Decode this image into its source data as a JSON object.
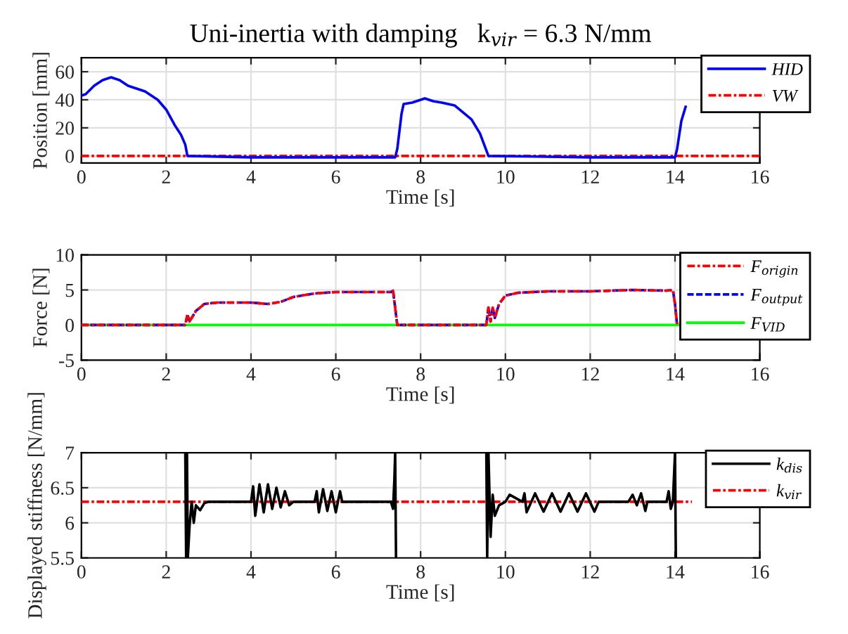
{
  "chart_data": [
    {
      "type": "line",
      "title": "Uni-inertia with damping   k$_{vir}$ = 6.3 N/mm",
      "xlabel": "Time [s]",
      "ylabel": "Position [mm]",
      "xlim": [
        0,
        16
      ],
      "xticks": [
        0,
        2,
        4,
        6,
        8,
        10,
        12,
        14,
        16
      ],
      "ylim": [
        -5,
        70
      ],
      "yticks": [
        0,
        20,
        40,
        60
      ],
      "grid": true,
      "legend": "top right",
      "series": [
        {
          "name": "HID",
          "color": "#0000ff",
          "line_style": "solid",
          "x": [
            0,
            0.1,
            0.3,
            0.5,
            0.7,
            0.9,
            1.1,
            1.5,
            1.8,
            2.0,
            2.2,
            2.35,
            2.45,
            2.5,
            4,
            6,
            7.4,
            7.45,
            7.55,
            7.6,
            7.8,
            8.0,
            8.1,
            8.3,
            8.5,
            8.8,
            9.2,
            9.4,
            9.6,
            12,
            14.0,
            14.05,
            14.15,
            14.25
          ],
          "values": [
            43,
            44,
            50,
            54,
            56,
            54,
            50,
            46,
            40,
            33,
            22,
            15,
            8,
            0,
            -1,
            -1,
            -1,
            5,
            30,
            37,
            38,
            40,
            41,
            39,
            38,
            36,
            26,
            16,
            0,
            -1,
            -1,
            5,
            25,
            35
          ]
        },
        {
          "name": "VW",
          "color": "#ff0000",
          "line_style": "dashdot",
          "x": [
            0,
            16
          ],
          "values": [
            0,
            0
          ]
        }
      ]
    },
    {
      "type": "line",
      "xlabel": "Time [s]",
      "ylabel": "Force [N]",
      "xlim": [
        0,
        16
      ],
      "xticks": [
        0,
        2,
        4,
        6,
        8,
        10,
        12,
        14,
        16
      ],
      "ylim": [
        -5,
        10
      ],
      "yticks": [
        -5,
        0,
        5,
        10
      ],
      "grid": true,
      "legend": "top right",
      "series": [
        {
          "name": "F$_{origin}$",
          "color": "#ff0000",
          "line_style": "dashdot",
          "x": [
            0,
            2.45,
            2.5,
            2.55,
            2.7,
            2.9,
            3.2,
            4.0,
            4.4,
            4.7,
            5.0,
            5.5,
            6.0,
            7.3,
            7.35,
            7.45,
            9.55,
            9.6,
            9.65,
            9.7,
            9.75,
            9.85,
            10.0,
            10.3,
            11,
            12,
            13,
            13.8,
            13.95,
            14.0,
            14.05
          ],
          "values": [
            0,
            0,
            1.5,
            0.5,
            2.0,
            3.0,
            3.2,
            3.2,
            3.0,
            3.3,
            4.0,
            4.5,
            4.7,
            4.7,
            4.9,
            0,
            0,
            2.5,
            0.5,
            2.5,
            1.0,
            3.0,
            4.2,
            4.6,
            4.8,
            4.8,
            5.0,
            4.9,
            5.0,
            3,
            0
          ]
        },
        {
          "name": "F$_{output}$",
          "color": "#0000ff",
          "line_style": "dashed",
          "x": [
            0,
            2.45,
            2.5,
            2.55,
            2.7,
            2.9,
            3.2,
            4.0,
            4.4,
            4.7,
            5.0,
            5.5,
            6.0,
            7.3,
            7.35,
            7.45,
            9.55,
            9.6,
            9.65,
            9.7,
            9.75,
            9.85,
            10.0,
            10.3,
            11,
            12,
            13,
            13.8,
            13.95,
            14.0,
            14.05
          ],
          "values": [
            0,
            0,
            1.5,
            0.5,
            2.0,
            3.0,
            3.2,
            3.2,
            3.0,
            3.3,
            4.0,
            4.5,
            4.7,
            4.7,
            4.9,
            0,
            0,
            2.5,
            0.5,
            2.5,
            1.0,
            3.0,
            4.2,
            4.6,
            4.8,
            4.8,
            5.0,
            4.9,
            5.0,
            3,
            0
          ]
        },
        {
          "name": "F$_{VID}$",
          "color": "#00ff00",
          "line_style": "solid",
          "x": [
            0,
            14.1
          ],
          "values": [
            0,
            0
          ]
        }
      ]
    },
    {
      "type": "line",
      "xlabel": "Time [s]",
      "ylabel": "Displayed stiffness [N/mm]",
      "xlim": [
        0,
        16
      ],
      "xticks": [
        0,
        2,
        4,
        6,
        8,
        10,
        12,
        14,
        16
      ],
      "ylim": [
        5.5,
        7
      ],
      "yticks": [
        5.5,
        6,
        6.5,
        7
      ],
      "grid": true,
      "legend": "top right",
      "series": [
        {
          "name": "k$_{dis}$",
          "color": "#000000",
          "line_style": "solid",
          "x": [
            2.45,
            2.47,
            2.49,
            2.51,
            2.55,
            2.6,
            2.65,
            2.7,
            2.8,
            2.9,
            3.0,
            4.0,
            4.05,
            4.1,
            4.2,
            4.3,
            4.4,
            4.5,
            4.6,
            4.7,
            4.8,
            4.9,
            5.0,
            5.5,
            5.55,
            5.6,
            5.7,
            5.8,
            5.9,
            6.0,
            6.1,
            6.15,
            7.3,
            7.35,
            7.38,
            7.4,
            7.42,
            7.5,
            9.55,
            9.57,
            9.6,
            9.65,
            9.7,
            9.75,
            9.85,
            10.0,
            10.1,
            10.4,
            10.45,
            10.5,
            10.7,
            10.9,
            11.1,
            11.3,
            11.5,
            11.7,
            11.9,
            12.1,
            12.2,
            12.9,
            13.0,
            13.1,
            13.2,
            13.3,
            13.35,
            13.8,
            13.85,
            13.9,
            13.95,
            14.0,
            14.02
          ],
          "values": [
            7.0,
            5.5,
            7.0,
            5.5,
            5.95,
            6.3,
            6.0,
            6.25,
            6.18,
            6.28,
            6.3,
            6.3,
            6.52,
            6.1,
            6.55,
            6.15,
            6.55,
            6.2,
            6.5,
            6.22,
            6.45,
            6.25,
            6.3,
            6.3,
            6.45,
            6.15,
            6.48,
            6.17,
            6.45,
            6.15,
            6.45,
            6.3,
            6.3,
            6.2,
            6.6,
            7.0,
            5.5,
            null,
            7.0,
            5.5,
            7.0,
            5.8,
            6.4,
            6.1,
            6.25,
            6.3,
            6.4,
            6.3,
            6.42,
            6.15,
            6.42,
            6.16,
            6.42,
            6.16,
            6.42,
            6.16,
            6.42,
            6.16,
            6.3,
            6.3,
            6.4,
            6.25,
            6.42,
            6.17,
            6.3,
            6.3,
            6.45,
            6.2,
            6.3,
            7.0,
            5.5
          ]
        },
        {
          "name": "k$_{vir}$",
          "color": "#ff0000",
          "line_style": "dashdot",
          "x": [
            0,
            14.4
          ],
          "values": [
            6.3,
            6.3
          ]
        }
      ]
    }
  ]
}
